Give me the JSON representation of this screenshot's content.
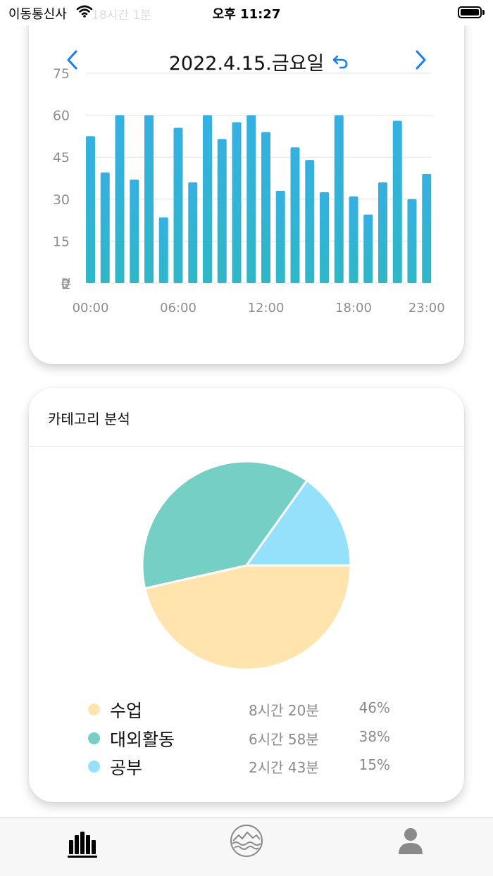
{
  "status_bar": {
    "carrier": "이동통신사",
    "faded_timer": "18시간 1분",
    "time": "오후 11:27"
  },
  "header": {
    "date": "2022.4.15.금요일",
    "prev_icon": "chevron-left-icon",
    "next_icon": "chevron-right-icon",
    "reset_icon": "undo-arrow-icon"
  },
  "colors": {
    "accent": "#1a7ef0",
    "bar_top": "#35b0e2",
    "bar_bottom": "#2fb7c6",
    "grid": "#e2e2e2",
    "axis_text": "#8e8e8e"
  },
  "chart_data": [
    {
      "type": "bar",
      "y_unit_label": "분",
      "ylim": [
        0,
        75
      ],
      "y_ticks": [
        0,
        15,
        30,
        45,
        60,
        75
      ],
      "x_tick_labels": [
        "00:00",
        "06:00",
        "12:00",
        "18:00",
        "23:00"
      ],
      "x_tick_hours": [
        0,
        6,
        12,
        18,
        23
      ],
      "grid": true,
      "x": [
        0,
        1,
        2,
        3,
        4,
        5,
        6,
        7,
        8,
        9,
        10,
        11,
        12,
        13,
        14,
        15,
        16,
        17,
        18,
        19,
        20,
        21,
        22,
        23
      ],
      "values": [
        52.5,
        39.5,
        60,
        37,
        60,
        23.5,
        55.5,
        36,
        60,
        51.5,
        57.5,
        60,
        54,
        33,
        48.5,
        44,
        32.5,
        60,
        31,
        24.5,
        36,
        58,
        30,
        39
      ]
    },
    {
      "type": "pie",
      "title": "카테고리 분석",
      "slices": [
        {
          "name": "수업",
          "duration": "8시간 20분",
          "percent_label": "46%",
          "value": 46,
          "color": "#ffe5ad"
        },
        {
          "name": "대외활동",
          "duration": "6시간 58분",
          "percent_label": "38%",
          "value": 38,
          "color": "#75cfc5"
        },
        {
          "name": "공부",
          "duration": "2시간 43분",
          "percent_label": "15%",
          "value": 15,
          "color": "#95e0fb"
        }
      ]
    }
  ],
  "tab_bar": {
    "items": [
      {
        "icon": "bar-chart-icon",
        "active": true
      },
      {
        "icon": "mountain-waves-icon",
        "active": false
      },
      {
        "icon": "person-icon",
        "active": false
      }
    ]
  }
}
